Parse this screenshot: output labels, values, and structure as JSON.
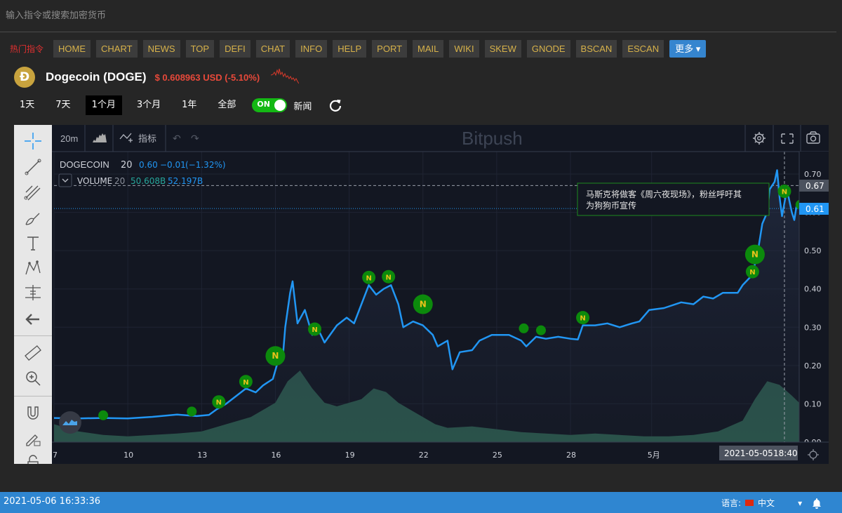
{
  "search": {
    "placeholder": "输入指令或搜索加密货币"
  },
  "nav": {
    "hot_label": "热门指令",
    "items": [
      "HOME",
      "CHART",
      "NEWS",
      "TOP",
      "DEFI",
      "CHAT",
      "INFO",
      "HELP",
      "PORT",
      "MAIL",
      "WIKI",
      "SKEW",
      "GNODE",
      "BSCAN",
      "ESCAN"
    ],
    "more_label": "更多"
  },
  "coin": {
    "logo_glyph": "Ð",
    "name": "Dogecoin (DOGE)",
    "price_text": "$ 0.608963 USD (-5.10%)"
  },
  "ranges": {
    "items": [
      "1天",
      "7天",
      "1个月",
      "3个月",
      "1年",
      "全部"
    ],
    "active": "1个月",
    "toggle_label": "ON",
    "news_label": "新闻"
  },
  "chart_header": {
    "interval": "20m",
    "indicator_label": "指标",
    "watermark": "Bitpush"
  },
  "legend": {
    "symbol": "DOGECOIN",
    "length": "20",
    "last": "0.60",
    "change": "−0.01",
    "change_pct": "(−1.32%)",
    "volume_label": "VOLUME",
    "volume_length": "20",
    "volume_value": "50.608B",
    "volume_ma": "52.197B"
  },
  "news_tooltip": "马斯克将做客《周六夜现场》，粉丝呼吁其为狗狗币宣传",
  "crosshair": {
    "date_label": "2021-05-05",
    "time_label": "18:40",
    "price_label": "0.67"
  },
  "current_price_label": "0.61",
  "colors": {
    "line": "#2196f3",
    "volume": "#2e5e50",
    "news_marker": "#0c8a0c",
    "news_letter": "#e8c21a",
    "up_text": "#26a69a",
    "down_text": "#2196f3"
  },
  "chart_data": {
    "type": "line",
    "series_name": "DOGECOIN",
    "x_tick_labels": [
      "7",
      "10",
      "13",
      "16",
      "19",
      "22",
      "25",
      "28",
      "5月"
    ],
    "y_tick_labels": [
      "0.70",
      "0.60",
      "0.50",
      "0.40",
      "0.30",
      "0.20",
      "0.10",
      "0.00"
    ],
    "ylim": [
      0,
      0.72
    ],
    "price": [
      [
        7.0,
        0.063
      ],
      [
        8.0,
        0.062
      ],
      [
        9.0,
        0.063
      ],
      [
        10.0,
        0.062
      ],
      [
        11.0,
        0.066
      ],
      [
        12.0,
        0.072
      ],
      [
        12.8,
        0.068
      ],
      [
        13.3,
        0.071
      ],
      [
        13.6,
        0.085
      ],
      [
        14.0,
        0.1
      ],
      [
        14.5,
        0.125
      ],
      [
        14.8,
        0.14
      ],
      [
        15.2,
        0.13
      ],
      [
        15.5,
        0.148
      ],
      [
        15.9,
        0.165
      ],
      [
        16.1,
        0.21
      ],
      [
        16.3,
        0.22
      ],
      [
        16.4,
        0.3
      ],
      [
        16.6,
        0.39
      ],
      [
        16.7,
        0.42
      ],
      [
        16.9,
        0.31
      ],
      [
        17.2,
        0.345
      ],
      [
        17.5,
        0.28
      ],
      [
        17.7,
        0.3
      ],
      [
        18.0,
        0.26
      ],
      [
        18.5,
        0.305
      ],
      [
        18.9,
        0.325
      ],
      [
        19.2,
        0.31
      ],
      [
        19.5,
        0.36
      ],
      [
        19.8,
        0.41
      ],
      [
        20.1,
        0.385
      ],
      [
        20.4,
        0.4
      ],
      [
        20.7,
        0.41
      ],
      [
        21.0,
        0.36
      ],
      [
        21.2,
        0.3
      ],
      [
        21.6,
        0.315
      ],
      [
        22.0,
        0.305
      ],
      [
        22.4,
        0.28
      ],
      [
        22.6,
        0.25
      ],
      [
        23.0,
        0.265
      ],
      [
        23.2,
        0.19
      ],
      [
        23.5,
        0.235
      ],
      [
        24.0,
        0.24
      ],
      [
        24.3,
        0.265
      ],
      [
        24.8,
        0.28
      ],
      [
        25.5,
        0.28
      ],
      [
        26.0,
        0.265
      ],
      [
        26.2,
        0.25
      ],
      [
        26.6,
        0.275
      ],
      [
        27.0,
        0.27
      ],
      [
        27.5,
        0.275
      ],
      [
        28.0,
        0.27
      ],
      [
        28.3,
        0.268
      ],
      [
        28.5,
        0.305
      ],
      [
        29.0,
        0.305
      ],
      [
        29.5,
        0.31
      ],
      [
        30.0,
        0.3
      ],
      [
        30.5,
        0.31
      ],
      [
        30.8,
        0.315
      ],
      [
        31.2,
        0.345
      ],
      [
        31.8,
        0.35
      ],
      [
        32.5,
        0.365
      ],
      [
        33.0,
        0.36
      ],
      [
        33.4,
        0.38
      ],
      [
        33.8,
        0.375
      ],
      [
        34.2,
        0.39
      ],
      [
        34.5,
        0.39
      ],
      [
        34.8,
        0.39
      ],
      [
        35.0,
        0.41
      ],
      [
        35.3,
        0.43
      ],
      [
        35.4,
        0.44
      ],
      [
        35.6,
        0.49
      ],
      [
        35.7,
        0.53
      ],
      [
        35.8,
        0.57
      ],
      [
        36.0,
        0.6
      ],
      [
        36.1,
        0.66
      ],
      [
        36.3,
        0.68
      ],
      [
        36.4,
        0.71
      ],
      [
        36.5,
        0.64
      ],
      [
        36.6,
        0.59
      ],
      [
        36.8,
        0.66
      ],
      [
        37.0,
        0.6
      ],
      [
        37.1,
        0.58
      ],
      [
        37.2,
        0.62
      ],
      [
        37.3,
        0.61
      ]
    ],
    "volume_relative": [
      [
        7.0,
        0.25
      ],
      [
        8.0,
        0.15
      ],
      [
        9.0,
        0.1
      ],
      [
        10.0,
        0.08
      ],
      [
        11.0,
        0.1
      ],
      [
        12.0,
        0.12
      ],
      [
        13.0,
        0.15
      ],
      [
        14.0,
        0.25
      ],
      [
        15.0,
        0.35
      ],
      [
        16.0,
        0.55
      ],
      [
        16.5,
        0.85
      ],
      [
        17.0,
        1.0
      ],
      [
        17.5,
        0.75
      ],
      [
        18.0,
        0.55
      ],
      [
        18.5,
        0.5
      ],
      [
        19.0,
        0.55
      ],
      [
        19.5,
        0.6
      ],
      [
        20.0,
        0.75
      ],
      [
        20.5,
        0.7
      ],
      [
        21.0,
        0.55
      ],
      [
        21.5,
        0.45
      ],
      [
        22.0,
        0.35
      ],
      [
        22.5,
        0.25
      ],
      [
        23.0,
        0.2
      ],
      [
        24.0,
        0.22
      ],
      [
        25.0,
        0.18
      ],
      [
        26.0,
        0.14
      ],
      [
        27.0,
        0.12
      ],
      [
        28.0,
        0.1
      ],
      [
        29.0,
        0.12
      ],
      [
        30.0,
        0.1
      ],
      [
        31.0,
        0.08
      ],
      [
        32.0,
        0.08
      ],
      [
        33.0,
        0.1
      ],
      [
        34.0,
        0.15
      ],
      [
        35.0,
        0.3
      ],
      [
        35.5,
        0.6
      ],
      [
        36.0,
        0.85
      ],
      [
        36.5,
        0.8
      ],
      [
        37.0,
        0.65
      ],
      [
        37.3,
        0.55
      ]
    ],
    "news_markers": [
      [
        9.0,
        0.07,
        "small"
      ],
      [
        12.6,
        0.08,
        "small"
      ],
      [
        13.7,
        0.105,
        "medium"
      ],
      [
        14.8,
        0.158,
        "medium"
      ],
      [
        16.0,
        0.225,
        "large"
      ],
      [
        17.6,
        0.295,
        "medium"
      ],
      [
        19.8,
        0.43,
        "medium"
      ],
      [
        20.6,
        0.432,
        "medium"
      ],
      [
        22.0,
        0.36,
        "large"
      ],
      [
        26.1,
        0.297,
        "small"
      ],
      [
        26.8,
        0.292,
        "small"
      ],
      [
        28.5,
        0.325,
        "medium"
      ],
      [
        35.4,
        0.445,
        "medium"
      ],
      [
        35.5,
        0.49,
        "large"
      ],
      [
        36.7,
        0.655,
        "medium"
      ],
      [
        37.35,
        0.62,
        "small"
      ]
    ]
  }
}
